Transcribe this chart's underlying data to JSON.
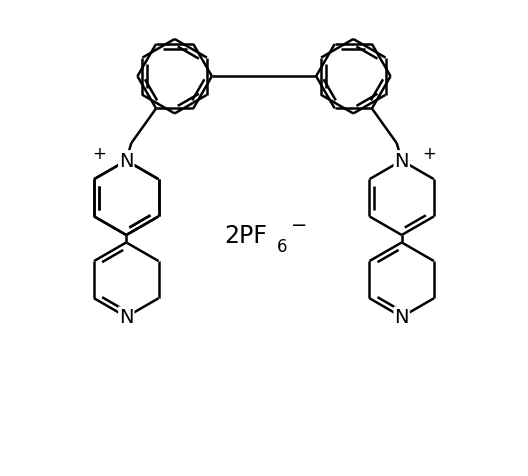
{
  "background_color": "#ffffff",
  "line_color": "#000000",
  "line_width": 1.8,
  "text_color": "#000000",
  "font_size": 14,
  "figsize": [
    5.28,
    4.77
  ],
  "dpi": 100,
  "xlim": [
    0,
    10
  ],
  "ylim": [
    0,
    9.5
  ]
}
